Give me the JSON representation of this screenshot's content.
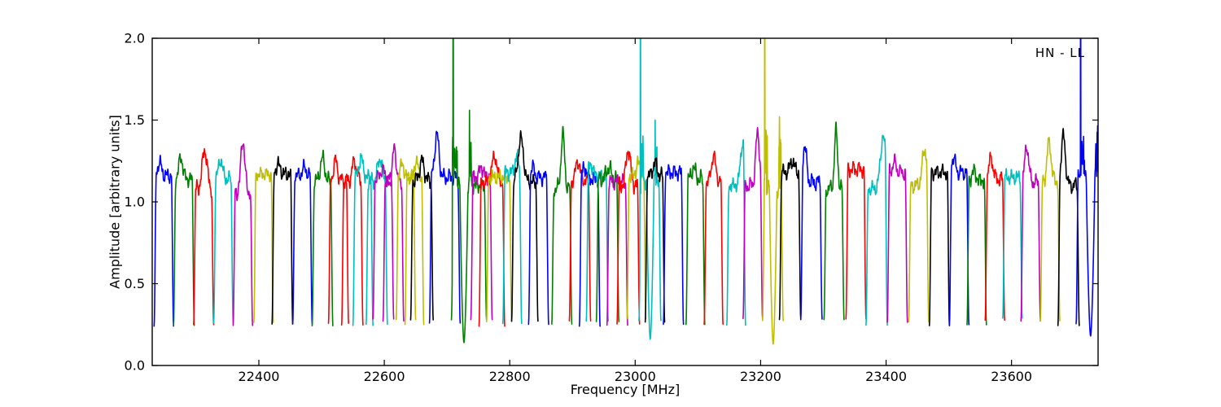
{
  "chart_data": {
    "type": "line",
    "title": "",
    "xlabel": "Frequency [MHz]",
    "ylabel": "Amplitude [arbitrary units]",
    "annotation": "HN - LL",
    "xlim": [
      22230,
      23738
    ],
    "ylim": [
      0.0,
      2.0
    ],
    "xticks": [
      22400,
      22600,
      22800,
      23000,
      23200,
      23400,
      23600
    ],
    "xtick_labels": [
      "22400",
      "22600",
      "22800",
      "23000",
      "23200",
      "23400",
      "23600"
    ],
    "yticks": [
      0.0,
      0.5,
      1.0,
      1.5,
      2.0
    ],
    "ytick_labels": [
      "0.0",
      "0.5",
      "1.0",
      "1.5",
      "2.0"
    ],
    "grid": false,
    "legend": "none",
    "axis_color": "#000000",
    "background_color": "#ffffff",
    "colors": {
      "b": "#0000ff",
      "g": "#008000",
      "r": "#ff0000",
      "c": "#00bfbf",
      "m": "#bf00bf",
      "y": "#bfbf00",
      "k": "#000000"
    },
    "baseline_amplitude": 0.26,
    "plateau_amplitude_typical": 1.15,
    "windows_note": "Each entry: [color, f0_MHz, f1_MHz, plateau_amp, peak([frac,extra_height,width]) or null, features or null]. Features: ['sp',freq,height]=narrow spike (clipped at ylim top if >2), ['cl',freq,halfwidth,height]=noisy spike cluster, ['dp',freq,halfwidth,floor]=deep absorption dip.",
    "windows": [
      [
        "b",
        22233,
        22264,
        1.16,
        [
          0.28,
          0.08
        ]
      ],
      [
        "g",
        22264,
        22297,
        1.14,
        [
          0.35,
          0.13
        ]
      ],
      [
        "r",
        22296,
        22328,
        1.08,
        [
          0.55,
          0.24,
          0.12
        ]
      ],
      [
        "c",
        22328,
        22359,
        1.14,
        [
          0.35,
          0.12
        ]
      ],
      [
        "m",
        22359,
        22390,
        1.06,
        [
          0.5,
          0.32,
          0.1
        ]
      ],
      [
        "y",
        22392,
        22423,
        1.17,
        null
      ],
      [
        "k",
        22421,
        22454,
        1.17,
        [
          0.3,
          0.06
        ]
      ],
      [
        "b",
        22454,
        22485,
        1.16,
        [
          0.6,
          0.05
        ]
      ],
      [
        "g",
        22485,
        22518,
        1.13,
        [
          0.5,
          0.14
        ]
      ],
      [
        "r",
        22511,
        22543,
        1.13,
        [
          0.35,
          0.12
        ]
      ],
      [
        "r",
        22532,
        22566,
        1.13,
        [
          0.6,
          0.12
        ]
      ],
      [
        "c",
        22550,
        22582,
        1.15,
        [
          0.4,
          0.12
        ]
      ],
      [
        "c",
        22571,
        22605,
        1.13,
        [
          0.65,
          0.14
        ]
      ],
      [
        "m",
        22582,
        22615,
        1.14,
        [
          0.45,
          0.06
        ]
      ],
      [
        "m",
        22598,
        22631,
        1.12,
        [
          0.55,
          0.22,
          0.08
        ]
      ],
      [
        "y",
        22619,
        22650,
        1.15,
        [
          0.3,
          0.08
        ]
      ],
      [
        "y",
        22633,
        22663,
        1.15,
        [
          0.6,
          0.1
        ]
      ],
      [
        "k",
        22642,
        22678,
        1.13,
        [
          0.5,
          0.12
        ]
      ],
      [
        "b",
        22672,
        22721,
        1.15,
        [
          0.24,
          0.26,
          0.07
        ]
      ],
      [
        "g",
        22707,
        22763,
        1.1,
        null,
        [
          [
            "sp",
            22710,
            3.2
          ],
          [
            "cl",
            22712.5,
            4,
            1.4
          ],
          [
            "dp",
            22727,
            6.5,
            0.14
          ],
          [
            "sp",
            22736,
            1.56
          ],
          [
            "cl",
            22737,
            2,
            1.42
          ]
        ]
      ],
      [
        "m",
        22738,
        22772,
        1.15,
        [
          0.5,
          0.06
        ]
      ],
      [
        "r",
        22751,
        22792,
        1.12,
        [
          0.6,
          0.16
        ]
      ],
      [
        "y",
        22763,
        22803,
        1.15,
        null
      ],
      [
        "c",
        22789,
        22819,
        1.18,
        [
          0.75,
          0.1
        ]
      ],
      [
        "k",
        22803,
        22845,
        1.12,
        [
          0.35,
          0.27,
          0.1
        ]
      ],
      [
        "b",
        22830,
        22862,
        1.15,
        [
          0.2,
          0.06
        ]
      ],
      [
        "g",
        22867,
        22899,
        1.08,
        [
          0.55,
          0.33,
          0.09
        ]
      ],
      [
        "r",
        22895,
        22929,
        1.13,
        [
          0.4,
          0.12
        ]
      ],
      [
        "b",
        22911,
        22944,
        1.14,
        [
          0.25,
          0.07
        ]
      ],
      [
        "c",
        22922,
        22957,
        1.16,
        [
          0.2,
          0.07
        ]
      ],
      [
        "g",
        22938,
        22974,
        1.14,
        [
          0.55,
          0.07
        ]
      ],
      [
        "m",
        22955,
        22988,
        1.12,
        null
      ],
      [
        "r",
        22971,
        23007,
        1.1,
        [
          0.5,
          0.22,
          0.1
        ]
      ],
      [
        "y",
        22987,
        23017,
        1.16,
        [
          0.6,
          0.08
        ]
      ],
      [
        "c",
        23006,
        23041,
        1.13,
        null,
        [
          [
            "sp",
            23008.5,
            3.2
          ],
          [
            "cl",
            23010.5,
            3,
            1.42
          ],
          [
            "dp",
            23024,
            6,
            0.16
          ],
          [
            "sp",
            23032,
            1.5
          ],
          [
            "cl",
            23033,
            2,
            1.38
          ]
        ]
      ],
      [
        "k",
        23016,
        23047,
        1.16,
        [
          0.5,
          0.08
        ]
      ],
      [
        "b",
        23045,
        23077,
        1.18,
        null
      ],
      [
        "g",
        23081,
        23111,
        1.14,
        [
          0.4,
          0.07
        ]
      ],
      [
        "r",
        23110,
        23140,
        1.13,
        [
          0.5,
          0.16
        ]
      ],
      [
        "c",
        23146,
        23176,
        1.1,
        [
          0.85,
          0.26,
          0.12
        ]
      ],
      [
        "m",
        23172,
        23203,
        1.1,
        [
          0.75,
          0.32,
          0.1
        ]
      ],
      [
        "y",
        23203,
        23236,
        1.08,
        null,
        [
          [
            "sp",
            23206.5,
            3.2
          ],
          [
            "cl",
            23208.5,
            3,
            1.46
          ],
          [
            "dp",
            23220,
            6,
            0.13
          ],
          [
            "sp",
            23230,
            1.52
          ],
          [
            "cl",
            23231,
            2,
            1.4
          ]
        ]
      ],
      [
        "k",
        23230,
        23264,
        1.18,
        [
          0.6,
          0.07
        ]
      ],
      [
        "b",
        23264,
        23298,
        1.12,
        [
          0.18,
          0.22,
          0.09
        ]
      ],
      [
        "g",
        23301,
        23333,
        1.08,
        [
          0.6,
          0.35,
          0.08
        ]
      ],
      [
        "r",
        23336,
        23368,
        1.2,
        null
      ],
      [
        "c",
        23368,
        23402,
        1.08,
        [
          0.8,
          0.32,
          0.12
        ]
      ],
      [
        "m",
        23402,
        23434,
        1.18,
        [
          0.35,
          0.06
        ]
      ],
      [
        "y",
        23436,
        23468,
        1.1,
        [
          0.8,
          0.22,
          0.12
        ]
      ],
      [
        "k",
        23469,
        23501,
        1.18,
        null
      ],
      [
        "b",
        23501,
        23532,
        1.18,
        [
          0.2,
          0.09
        ]
      ],
      [
        "g",
        23529,
        23560,
        1.13,
        [
          0.35,
          0.06
        ]
      ],
      [
        "r",
        23558,
        23589,
        1.14,
        [
          0.3,
          0.13
        ]
      ],
      [
        "c",
        23586,
        23617,
        1.15,
        null
      ],
      [
        "m",
        23615,
        23646,
        1.12,
        [
          0.3,
          0.22,
          0.1
        ]
      ],
      [
        "y",
        23646,
        23677,
        1.13,
        [
          0.45,
          0.24,
          0.1
        ]
      ],
      [
        "k",
        23674,
        23708,
        1.1,
        [
          0.25,
          0.3,
          0.1
        ]
      ],
      [
        "b",
        23703,
        23744,
        1.18,
        null,
        [
          [
            "sp",
            23710,
            3.2
          ],
          [
            "cl",
            23713,
            3.5,
            1.45
          ],
          [
            "dp",
            23726,
            7,
            0.18
          ],
          [
            "cl",
            23737.5,
            3.5,
            1.47
          ]
        ]
      ]
    ]
  }
}
